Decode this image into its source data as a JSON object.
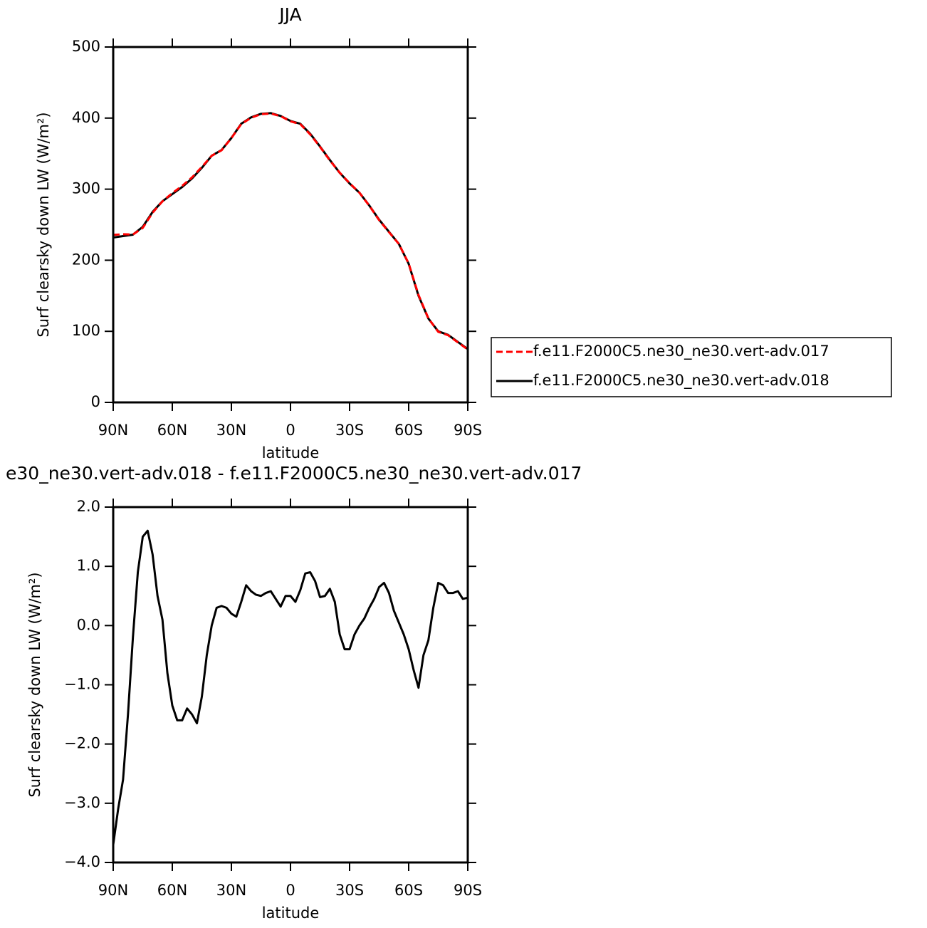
{
  "chart_data": [
    {
      "type": "line",
      "title": "JJA",
      "xlabel": "latitude",
      "ylabel": "Surf clearsky down LW (W/m²)",
      "x": [
        90,
        85,
        80,
        75,
        70,
        65,
        60,
        55,
        50,
        45,
        40,
        35,
        30,
        25,
        20,
        15,
        10,
        5,
        0,
        -5,
        -10,
        -15,
        -20,
        -25,
        -30,
        -35,
        -40,
        -45,
        -50,
        -55,
        -60,
        -65,
        -70,
        -75,
        -80,
        -85,
        -90
      ],
      "xlim": [
        90,
        -90
      ],
      "xticks": [
        {
          "value": 90,
          "label": "90N"
        },
        {
          "value": 60,
          "label": "60N"
        },
        {
          "value": 30,
          "label": "30N"
        },
        0,
        {
          "value": -30,
          "label": "30S"
        },
        {
          "value": -60,
          "label": "60S"
        },
        {
          "value": -90,
          "label": "90S"
        }
      ],
      "ylim": [
        0,
        500
      ],
      "yticks": [
        0,
        100,
        200,
        300,
        400,
        500
      ],
      "legend": "right",
      "series": [
        {
          "name": "f.e11.F2000C5.ne30_ne30.vert-adv.017",
          "color": "#ff0000",
          "dash": true,
          "values": [
            235.7,
            236.6,
            236.2,
            245.5,
            266.8,
            282.9,
            294.4,
            304.6,
            316.5,
            331.2,
            347,
            354.7,
            371.8,
            391.6,
            400.4,
            405.5,
            406.4,
            402.7,
            395.5,
            391.4,
            377.1,
            359.5,
            340.4,
            323.2,
            308.4,
            295,
            276.7,
            256.4,
            239.5,
            223,
            195.4,
            151.1,
            118.3,
            99.3,
            94.5,
            84.4,
            74.5
          ]
        },
        {
          "name": "f.e11.F2000C5.ne30_ne30.vert-adv.018",
          "color": "#000000",
          "dash": false,
          "values": [
            232,
            234,
            236,
            247,
            268,
            283,
            293,
            303,
            315,
            330,
            347,
            355,
            372,
            392,
            401,
            406,
            407,
            403,
            396,
            392,
            378,
            360,
            341,
            323,
            308,
            295,
            277,
            257,
            240,
            223,
            195,
            150,
            118,
            100,
            95,
            85,
            75
          ]
        }
      ]
    },
    {
      "type": "line",
      "title": "e30_ne30.vert-adv.018 - f.e11.F2000C5.ne30_ne30.vert-adv.017",
      "xlabel": "latitude",
      "ylabel": "Surf clearsky down LW (W/m²)",
      "x": [
        90,
        87.5,
        85,
        82.5,
        80,
        77.5,
        75,
        72.5,
        70,
        67.5,
        65,
        62.5,
        60,
        57.5,
        55,
        52.5,
        50,
        47.5,
        45,
        42.5,
        40,
        37.5,
        35,
        32.5,
        30,
        27.5,
        25,
        22.5,
        20,
        17.5,
        15,
        12.5,
        10,
        7.5,
        5,
        2.5,
        0,
        -2.5,
        -5,
        -7.5,
        -10,
        -12.5,
        -15,
        -17.5,
        -20,
        -22.5,
        -25,
        -27.5,
        -30,
        -32.5,
        -35,
        -37.5,
        -40,
        -42.5,
        -45,
        -47.5,
        -50,
        -52.5,
        -55,
        -57.5,
        -60,
        -62.5,
        -65,
        -67.5,
        -70,
        -72.5,
        -75,
        -77.5,
        -80,
        -82.5,
        -85,
        -87.5,
        -90
      ],
      "xlim": [
        90,
        -90
      ],
      "xticks": [
        {
          "value": 90,
          "label": "90N"
        },
        {
          "value": 60,
          "label": "60N"
        },
        {
          "value": 30,
          "label": "30N"
        },
        0,
        {
          "value": -30,
          "label": "30S"
        },
        {
          "value": -60,
          "label": "60S"
        },
        {
          "value": -90,
          "label": "90S"
        }
      ],
      "ylim": [
        -4,
        2
      ],
      "yticks": [
        {
          "value": -4,
          "label": "−4.0"
        },
        {
          "value": -3,
          "label": "−3.0"
        },
        {
          "value": -2,
          "label": "−2.0"
        },
        {
          "value": -1,
          "label": "−1.0"
        },
        {
          "value": 0,
          "label": "0.0"
        },
        {
          "value": 1,
          "label": "1.0"
        },
        {
          "value": 2,
          "label": "2.0"
        }
      ],
      "series": [
        {
          "color": "#000000",
          "values": [
            -3.7,
            -3.1,
            -2.6,
            -1.5,
            -0.2,
            0.9,
            1.5,
            1.6,
            1.2,
            0.5,
            0.1,
            -0.8,
            -1.35,
            -1.6,
            -1.6,
            -1.4,
            -1.5,
            -1.65,
            -1.2,
            -0.5,
            0,
            0.3,
            0.33,
            0.3,
            0.2,
            0.15,
            0.4,
            0.68,
            0.58,
            0.52,
            0.5,
            0.55,
            0.58,
            0.45,
            0.32,
            0.5,
            0.5,
            0.4,
            0.6,
            0.88,
            0.9,
            0.75,
            0.48,
            0.5,
            0.62,
            0.4,
            -0.15,
            -0.4,
            -0.4,
            -0.15,
            0,
            0.12,
            0.3,
            0.45,
            0.65,
            0.72,
            0.55,
            0.25,
            0.05,
            -0.15,
            -0.4,
            -0.75,
            -1.05,
            -0.5,
            -0.25,
            0.3,
            0.72,
            0.68,
            0.55,
            0.55,
            0.58,
            0.45,
            0.47
          ]
        }
      ]
    }
  ]
}
